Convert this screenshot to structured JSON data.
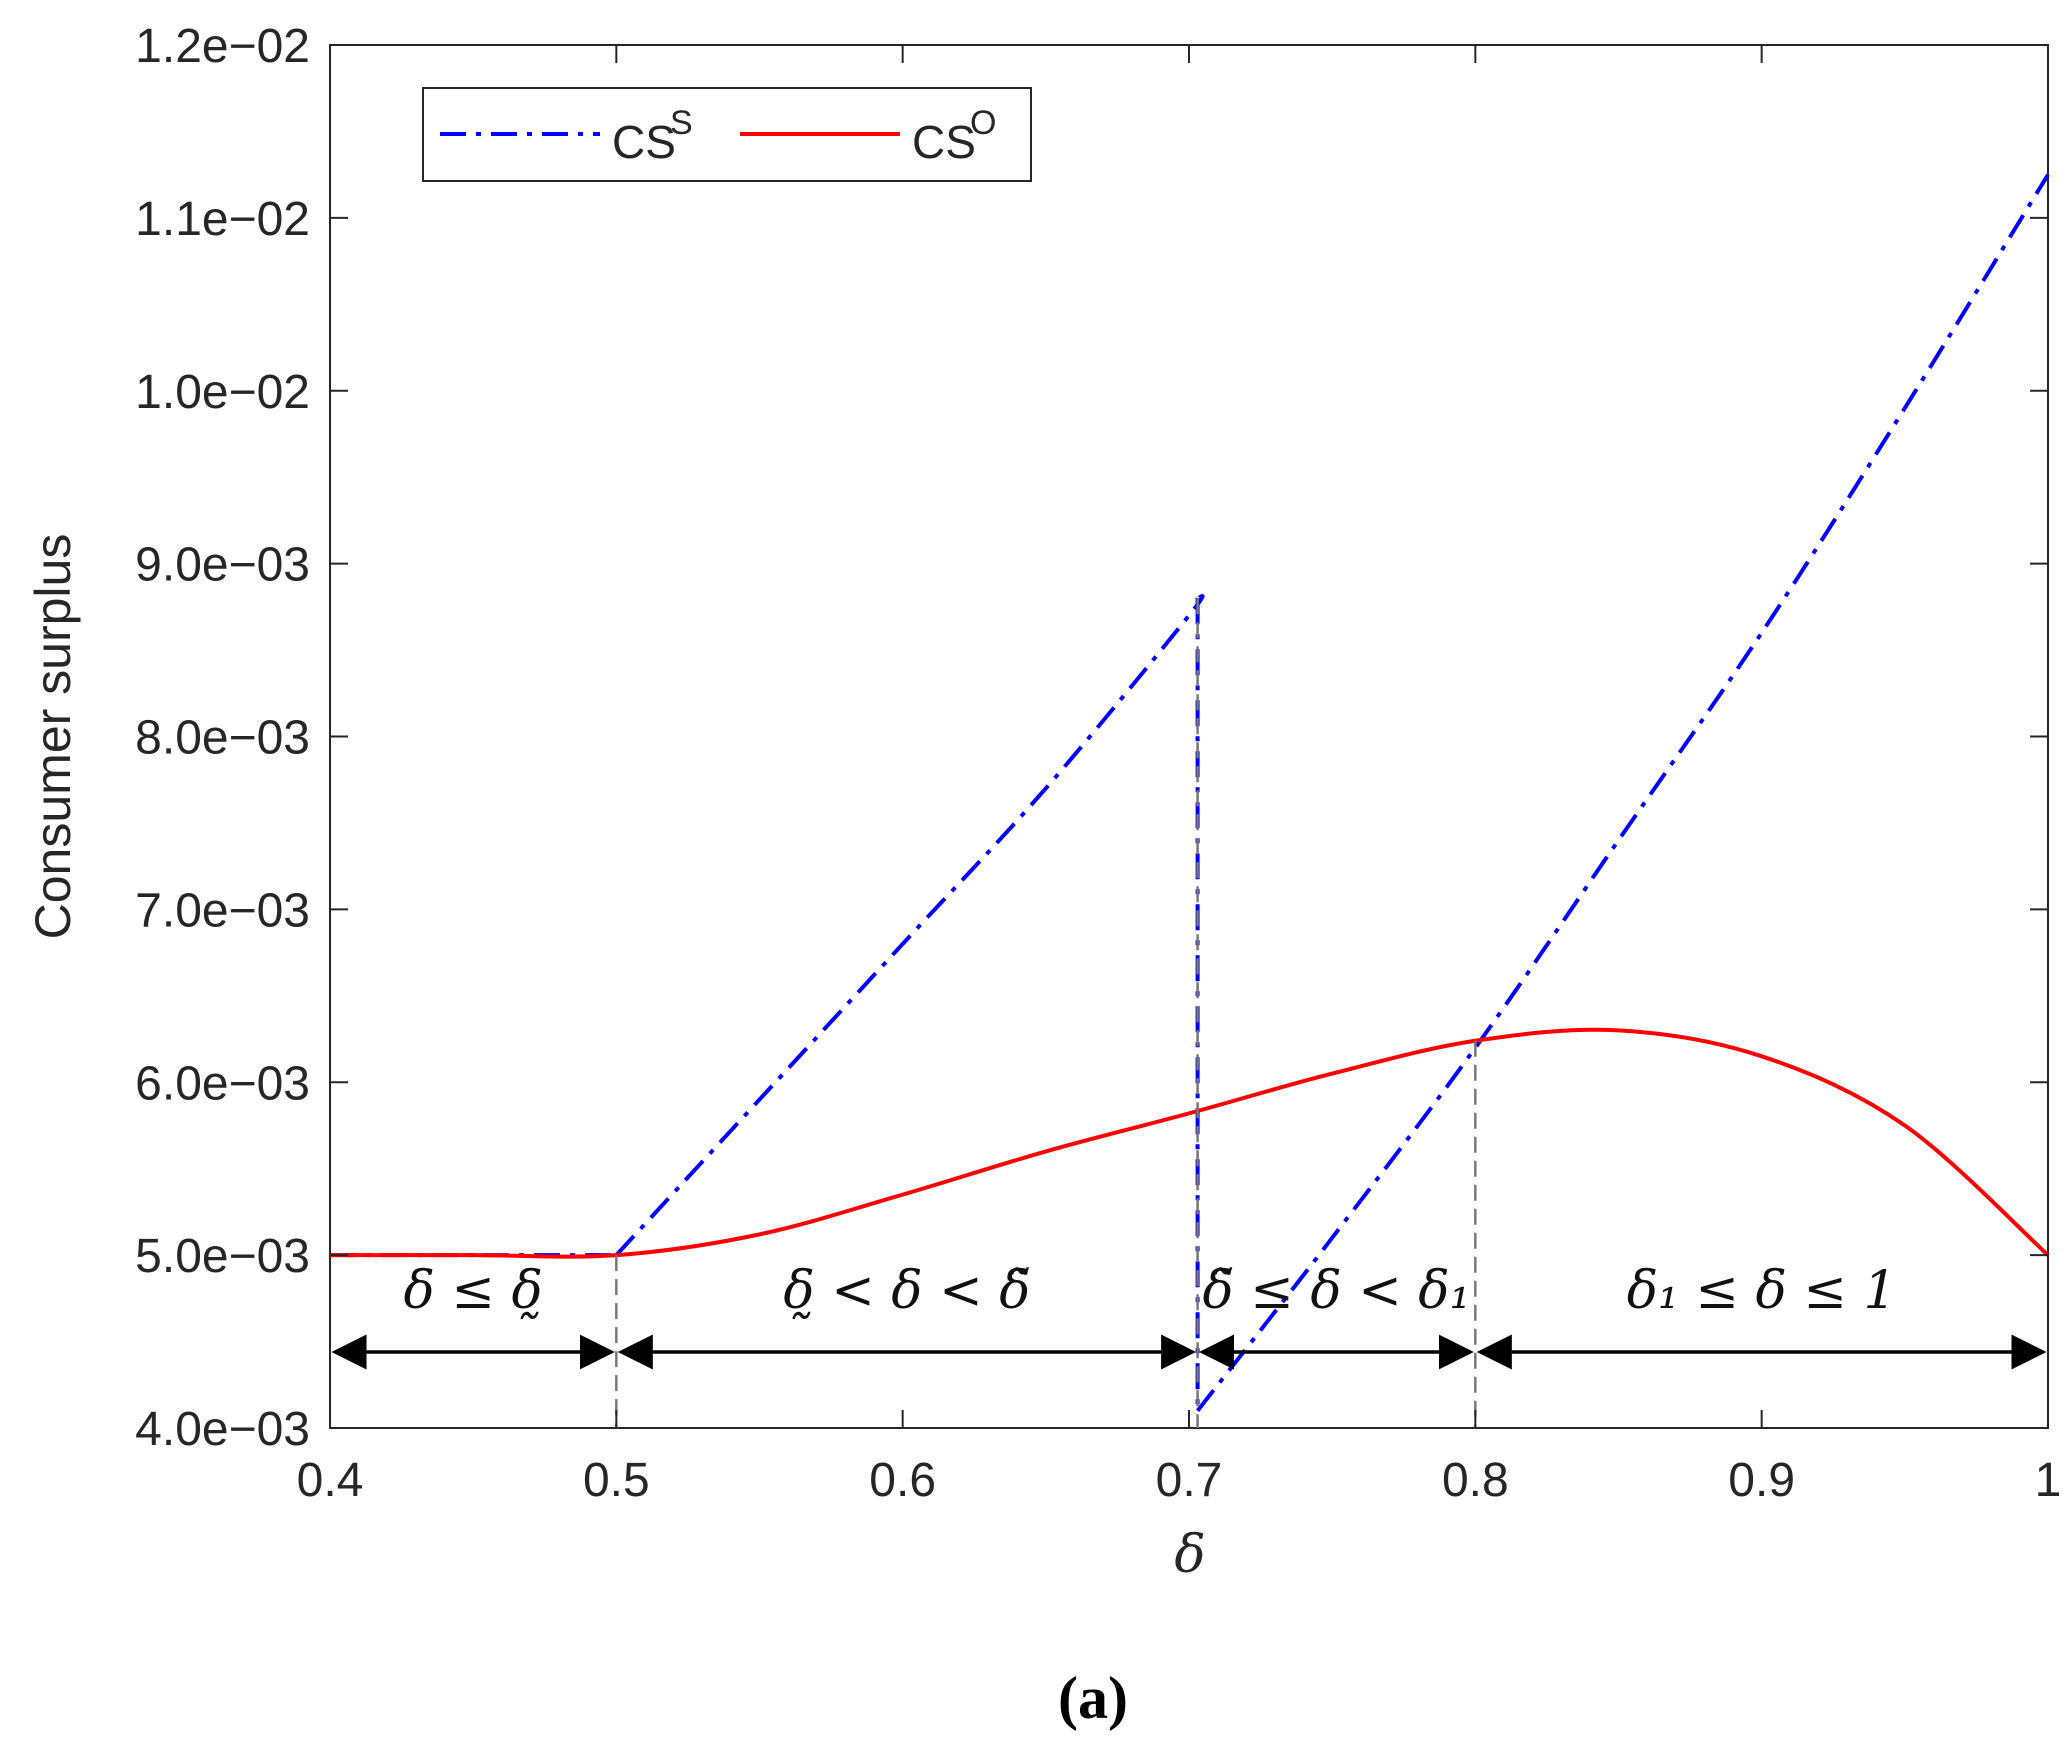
{
  "chart_data": {
    "type": "line",
    "xlabel": "δ",
    "ylabel": "Consumer surplus",
    "xlim": [
      0.4,
      1.0
    ],
    "ylim": [
      0.004,
      0.012
    ],
    "x_ticks": [
      0.4,
      0.5,
      0.6,
      0.7,
      0.8,
      0.9,
      1.0
    ],
    "x_tick_labels": [
      "0.4",
      "0.5",
      "0.6",
      "0.7",
      "0.8",
      "0.9",
      "1"
    ],
    "y_ticks": [
      0.004,
      0.005,
      0.006,
      0.007,
      0.008,
      0.009,
      0.01,
      0.011,
      0.012
    ],
    "y_tick_labels": [
      "4.0e−03",
      "5.0e−03",
      "6.0e−03",
      "7.0e−03",
      "8.0e−03",
      "9.0e−03",
      "1.0e−02",
      "1.1e−02",
      "1.2e−02"
    ],
    "grid": false,
    "legend_position": "top-left",
    "series": [
      {
        "name": "CS",
        "superscript": "S",
        "color": "#0000ff",
        "style": "dash-dot",
        "segments": [
          {
            "x": [
              0.4,
              0.45,
              0.5
            ],
            "y": [
              0.005,
              0.005,
              0.005
            ]
          },
          {
            "x": [
              0.5,
              0.55,
              0.6,
              0.65,
              0.7,
              0.703
            ],
            "y": [
              0.005,
              0.0059,
              0.0068,
              0.0077,
              0.0087,
              0.0088
            ]
          },
          {
            "x": [
              0.703,
              0.703
            ],
            "y": [
              0.0088,
              0.0041
            ]
          },
          {
            "x": [
              0.703,
              0.75,
              0.8,
              0.85,
              0.9,
              0.95,
              1.0
            ],
            "y": [
              0.0041,
              0.0051,
              0.0062,
              0.0074,
              0.0086,
              0.0099,
              0.01125
            ]
          }
        ]
      },
      {
        "name": "CS",
        "superscript": "O",
        "color": "#ff0000",
        "style": "solid",
        "segments": [
          {
            "x": [
              0.4,
              0.45,
              0.5,
              0.55,
              0.6,
              0.65,
              0.7,
              0.75,
              0.8,
              0.85,
              0.9,
              0.95,
              1.0
            ],
            "y": [
              0.005,
              0.005,
              0.005,
              0.00512,
              0.00535,
              0.0056,
              0.00582,
              0.00605,
              0.00624,
              0.0063,
              0.00615,
              0.00575,
              0.005
            ]
          }
        ]
      }
    ],
    "annotations": [
      {
        "text": "δ ≤ δ̰",
        "x_range": [
          0.4,
          0.5
        ]
      },
      {
        "text": "δ̰ < δ < δ̃",
        "x_range": [
          0.5,
          0.703
        ]
      },
      {
        "text": "δ̃ ≤ δ < δ₁",
        "x_range": [
          0.703,
          0.8
        ]
      },
      {
        "text": "δ₁ ≤ δ ≤ 1",
        "x_range": [
          0.8,
          1.0
        ]
      }
    ],
    "region_boundaries": [
      0.5,
      0.703,
      0.8
    ],
    "caption": "(a)"
  }
}
